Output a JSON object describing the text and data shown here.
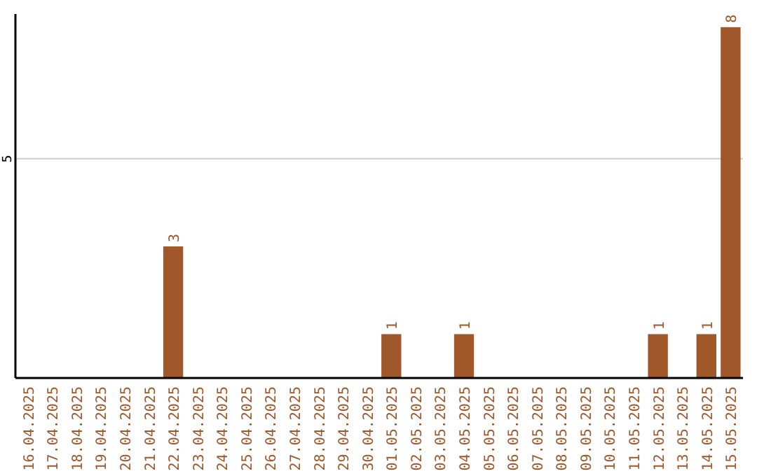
{
  "chart_data": {
    "type": "bar",
    "categories": [
      "16.04.2025",
      "17.04.2025",
      "18.04.2025",
      "19.04.2025",
      "20.04.2025",
      "21.04.2025",
      "22.04.2025",
      "23.04.2025",
      "24.04.2025",
      "25.04.2025",
      "26.04.2025",
      "27.04.2025",
      "28.04.2025",
      "29.04.2025",
      "30.04.2025",
      "01.05.2025",
      "02.05.2025",
      "03.05.2025",
      "04.05.2025",
      "05.05.2025",
      "06.05.2025",
      "07.05.2025",
      "08.05.2025",
      "09.05.2025",
      "10.05.2025",
      "11.05.2025",
      "12.05.2025",
      "13.05.2025",
      "14.05.2025",
      "15.05.2025"
    ],
    "values": [
      0,
      0,
      0,
      0,
      0,
      0,
      3,
      0,
      0,
      0,
      0,
      0,
      0,
      0,
      0,
      1,
      0,
      0,
      1,
      0,
      0,
      0,
      0,
      0,
      0,
      0,
      1,
      0,
      1,
      8
    ],
    "value_labels": [
      null,
      null,
      null,
      null,
      null,
      null,
      "3",
      null,
      null,
      null,
      null,
      null,
      null,
      null,
      null,
      "1",
      null,
      null,
      "1",
      null,
      null,
      null,
      null,
      null,
      null,
      null,
      "1",
      null,
      "1",
      "8"
    ],
    "color": "#a0572a",
    "ylim": [
      0,
      8.3
    ],
    "yticks": [
      5
    ],
    "grid": "y"
  }
}
